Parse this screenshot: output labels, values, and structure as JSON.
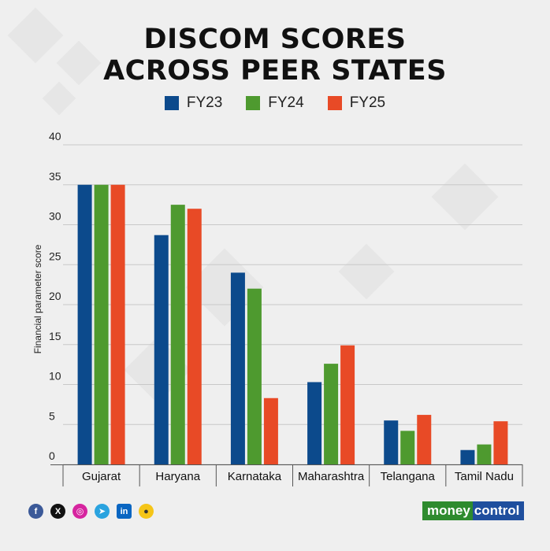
{
  "title_line1": "DISCOM SCORES",
  "title_line2": "ACROSS PEER STATES",
  "brand": {
    "part1": "money",
    "part2": "control"
  },
  "social_icons": [
    "facebook-icon",
    "x-icon",
    "instagram-icon",
    "telegram-icon",
    "linkedin-icon",
    "koo-icon"
  ],
  "colors": {
    "FY23": "#0c4a8c",
    "FY24": "#4e9a2f",
    "FY25": "#e84a26",
    "grid": "#c8c8c8",
    "background": "#efefef"
  },
  "chart_data": {
    "type": "bar",
    "title": "DISCOM SCORES ACROSS PEER STATES",
    "xlabel": "",
    "ylabel": "Financial parameter score",
    "ylim": [
      0,
      40
    ],
    "yticks": [
      0,
      5,
      10,
      15,
      20,
      25,
      30,
      35,
      40
    ],
    "grid": true,
    "legend_position": "top-center",
    "categories": [
      "Gujarat",
      "Haryana",
      "Karnataka",
      "Maharashtra",
      "Telangana",
      "Tamil Nadu"
    ],
    "series": [
      {
        "name": "FY23",
        "values": [
          35,
          28.7,
          24,
          10.3,
          5.5,
          1.8
        ]
      },
      {
        "name": "FY24",
        "values": [
          35,
          32.5,
          22,
          12.6,
          4.2,
          2.5
        ]
      },
      {
        "name": "FY25",
        "values": [
          35,
          32,
          8.3,
          14.9,
          6.2,
          5.4
        ]
      }
    ]
  }
}
